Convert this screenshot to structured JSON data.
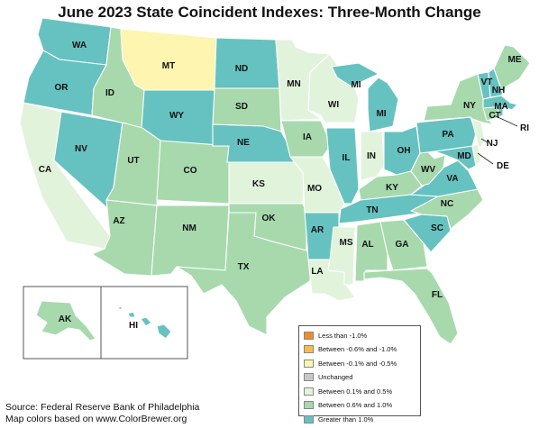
{
  "title": "June 2023 State Coincident Indexes: Three-Month Change",
  "colors": {
    "lt_neg1": "#f28c28",
    "neg06_neg1": "#f8bb4d",
    "neg01_neg05": "#fdf5b0",
    "unchanged": "#c8c8c8",
    "p01_p05": "#e2f3dc",
    "p06_p1": "#a7d9ad",
    "gt1": "#66c2c0"
  },
  "legend": [
    {
      "label": "Less than -1.0%",
      "color_key": "lt_neg1"
    },
    {
      "label": "Between -0.6% and -1.0%",
      "color_key": "neg06_neg1"
    },
    {
      "label": "Between -0.1% and -0.5%",
      "color_key": "neg01_neg05"
    },
    {
      "label": "Unchanged",
      "color_key": "unchanged"
    },
    {
      "label": "Between 0.1% and 0.5%",
      "color_key": "p01_p05"
    },
    {
      "label": "Between 0.6% and 1.0%",
      "color_key": "p06_p1"
    },
    {
      "label": "Greater than 1.0%",
      "color_key": "gt1"
    }
  ],
  "states": [
    {
      "abbr": "WA",
      "category": "gt1"
    },
    {
      "abbr": "OR",
      "category": "gt1"
    },
    {
      "abbr": "CA",
      "category": "p01_p05"
    },
    {
      "abbr": "ID",
      "category": "p06_p1"
    },
    {
      "abbr": "NV",
      "category": "gt1"
    },
    {
      "abbr": "MT",
      "category": "neg01_neg05"
    },
    {
      "abbr": "WY",
      "category": "gt1"
    },
    {
      "abbr": "UT",
      "category": "p06_p1"
    },
    {
      "abbr": "AZ",
      "category": "p06_p1"
    },
    {
      "abbr": "CO",
      "category": "p06_p1"
    },
    {
      "abbr": "NM",
      "category": "p06_p1"
    },
    {
      "abbr": "ND",
      "category": "gt1"
    },
    {
      "abbr": "SD",
      "category": "p06_p1"
    },
    {
      "abbr": "NE",
      "category": "gt1"
    },
    {
      "abbr": "KS",
      "category": "p01_p05"
    },
    {
      "abbr": "OK",
      "category": "p06_p1"
    },
    {
      "abbr": "TX",
      "category": "p06_p1"
    },
    {
      "abbr": "MN",
      "category": "p01_p05"
    },
    {
      "abbr": "IA",
      "category": "p06_p1"
    },
    {
      "abbr": "MO",
      "category": "p01_p05"
    },
    {
      "abbr": "AR",
      "category": "gt1"
    },
    {
      "abbr": "LA",
      "category": "p01_p05"
    },
    {
      "abbr": "WI",
      "category": "p01_p05"
    },
    {
      "abbr": "IL",
      "category": "gt1"
    },
    {
      "abbr": "MS",
      "category": "p01_p05"
    },
    {
      "abbr": "MI",
      "category": "gt1"
    },
    {
      "abbr": "IN",
      "category": "p01_p05"
    },
    {
      "abbr": "OH",
      "category": "gt1"
    },
    {
      "abbr": "KY",
      "category": "p06_p1"
    },
    {
      "abbr": "TN",
      "category": "gt1"
    },
    {
      "abbr": "AL",
      "category": "p06_p1"
    },
    {
      "abbr": "GA",
      "category": "p06_p1"
    },
    {
      "abbr": "FL",
      "category": "p06_p1"
    },
    {
      "abbr": "SC",
      "category": "gt1"
    },
    {
      "abbr": "NC",
      "category": "p06_p1"
    },
    {
      "abbr": "VA",
      "category": "gt1"
    },
    {
      "abbr": "WV",
      "category": "p06_p1"
    },
    {
      "abbr": "PA",
      "category": "gt1"
    },
    {
      "abbr": "NY",
      "category": "p06_p1"
    },
    {
      "abbr": "NJ",
      "category": "p01_p05"
    },
    {
      "abbr": "DE",
      "category": "p01_p05"
    },
    {
      "abbr": "MD",
      "category": "gt1"
    },
    {
      "abbr": "CT",
      "category": "p06_p1"
    },
    {
      "abbr": "RI",
      "category": "gt1"
    },
    {
      "abbr": "MA",
      "category": "gt1"
    },
    {
      "abbr": "VT",
      "category": "gt1"
    },
    {
      "abbr": "NH",
      "category": "gt1"
    },
    {
      "abbr": "ME",
      "category": "p06_p1"
    },
    {
      "abbr": "AK",
      "category": "p06_p1"
    },
    {
      "abbr": "HI",
      "category": "gt1"
    }
  ],
  "source_line1": "Source: Federal Reserve Bank of Philadelphia",
  "source_line2": "Map colors based on www.ColorBrewer.org"
}
